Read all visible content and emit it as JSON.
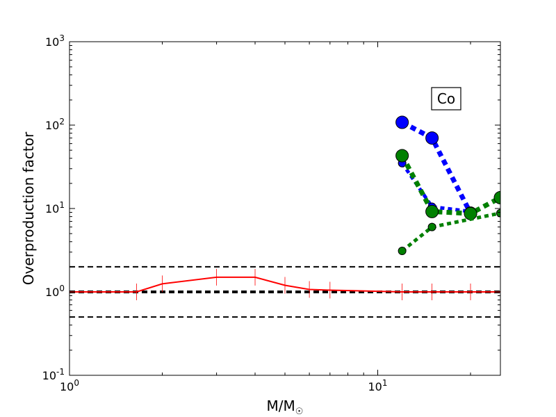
{
  "chart_data": {
    "type": "line",
    "title": "",
    "annotation": "Co",
    "xlabel": "M/M",
    "xlabel_symbol": "☉",
    "ylabel": "Overproduction factor",
    "xscale": "log",
    "yscale": "log",
    "xlim": [
      1,
      25
    ],
    "ylim": [
      0.1,
      1000
    ],
    "x_ticks": [
      {
        "value": 1,
        "base": "10",
        "exp": "0"
      },
      {
        "value": 10,
        "base": "10",
        "exp": "1"
      }
    ],
    "y_ticks": [
      {
        "value": 0.1,
        "base": "10",
        "exp": "-1"
      },
      {
        "value": 1,
        "base": "10",
        "exp": "0"
      },
      {
        "value": 10,
        "base": "10",
        "exp": "1"
      },
      {
        "value": 100,
        "base": "10",
        "exp": "2"
      },
      {
        "value": 1000,
        "base": "10",
        "exp": "3"
      }
    ],
    "reference_lines": [
      {
        "y": 2.0,
        "style": "dashed",
        "weight": "thin"
      },
      {
        "y": 1.0,
        "style": "dashed",
        "weight": "thick"
      },
      {
        "y": 0.5,
        "style": "dashed",
        "weight": "thin"
      }
    ],
    "series": [
      {
        "color": "#ff0000",
        "style": "solid",
        "marker": "vline",
        "x": [
          1.0,
          1.65,
          2.0,
          3.0,
          4.0,
          5.0,
          6.0,
          7.0,
          12.0,
          15.0,
          20.0,
          25.0
        ],
        "y": [
          1.0,
          1.0,
          1.25,
          1.5,
          1.5,
          1.2,
          1.07,
          1.05,
          1.0,
          1.0,
          1.0,
          1.0
        ]
      },
      {
        "color": "#0000ff",
        "style": "dotted",
        "marker": "circle",
        "marker_size": "large",
        "x": [
          12,
          15,
          20
        ],
        "y": [
          108,
          70,
          8.8
        ]
      },
      {
        "color": "#0000ff",
        "style": "dotted",
        "marker": "circle",
        "marker_size": "small",
        "x": [
          12,
          15,
          20
        ],
        "y": [
          35,
          10.5,
          9.2
        ]
      },
      {
        "color": "#008000",
        "style": "dotted",
        "marker": "circle",
        "marker_size": "large",
        "x": [
          12,
          15,
          20,
          25
        ],
        "y": [
          43,
          9.2,
          8.7,
          13.5
        ]
      },
      {
        "color": "#008000",
        "style": "dotted",
        "marker": "circle",
        "marker_size": "small",
        "x": [
          12,
          15,
          25
        ],
        "y": [
          3.1,
          6.0,
          8.8
        ]
      }
    ]
  }
}
